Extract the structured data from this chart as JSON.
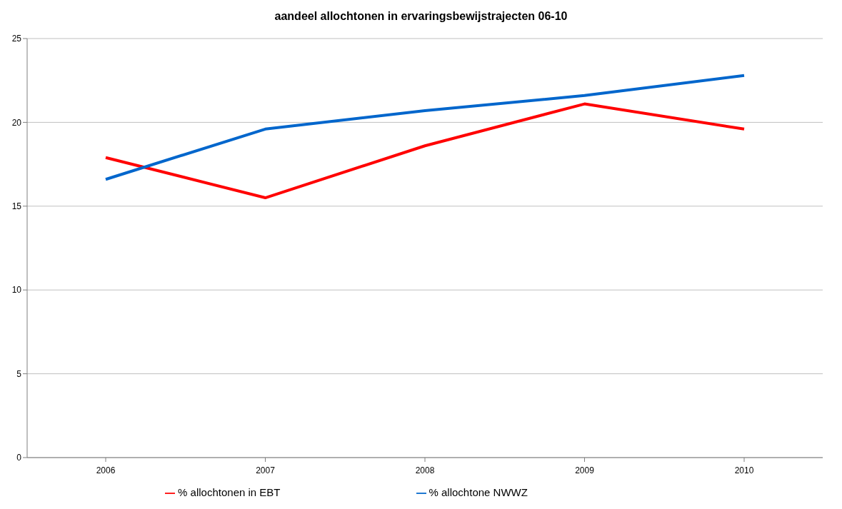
{
  "chart_data": {
    "type": "line",
    "title": "aandeel allochtonen in ervaringsbewijstrajecten 06-10",
    "categories": [
      "2006",
      "2007",
      "2008",
      "2009",
      "2010"
    ],
    "series": [
      {
        "name": "% allochtonen in EBT",
        "color": "#ff0000",
        "values": [
          17.9,
          15.5,
          18.6,
          21.1,
          19.6
        ]
      },
      {
        "name": "% allochtone NWWZ",
        "color": "#0066cc",
        "values": [
          16.6,
          19.6,
          20.7,
          21.6,
          22.8
        ]
      }
    ],
    "ylim": [
      0,
      25
    ],
    "yticks": [
      0,
      5,
      10,
      15,
      20,
      25
    ],
    "grid": "y",
    "legend": "bottom",
    "marker": "none",
    "line_style": "solid"
  }
}
